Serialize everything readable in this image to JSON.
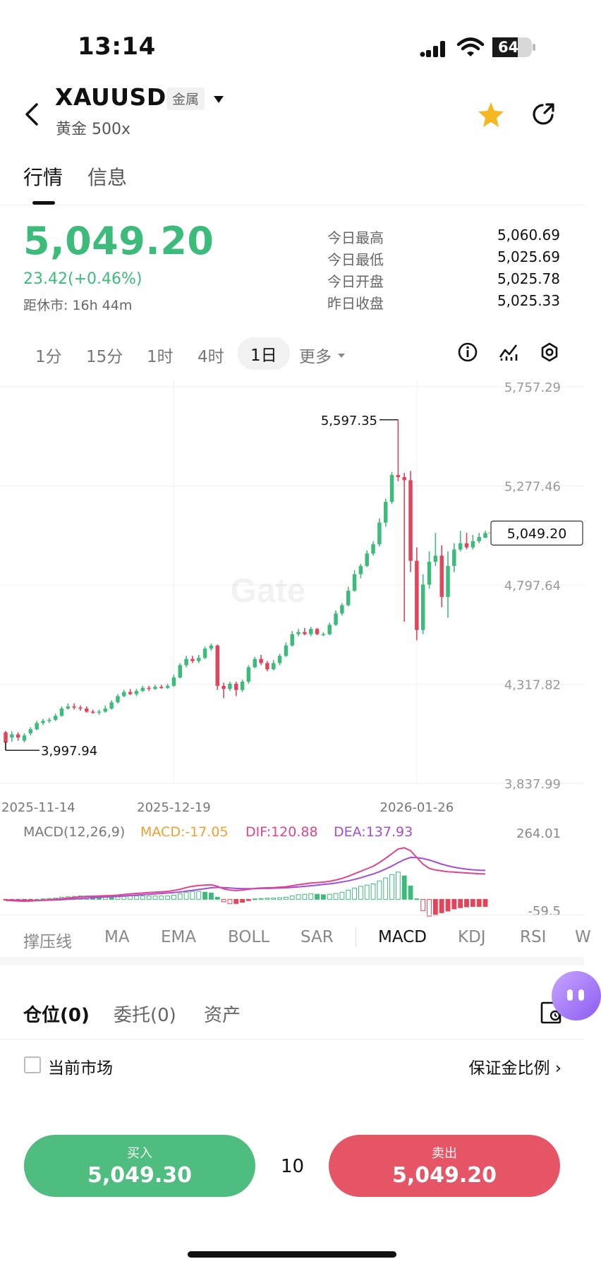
{
  "status_bar": {
    "time": "13:14",
    "battery": "64",
    "battery_level": 0.64
  },
  "header": {
    "symbol": "XAUUSD",
    "category": "金属",
    "subtitle": "黄金 500x"
  },
  "tabs": [
    {
      "label": "行情",
      "active": true
    },
    {
      "label": "信息",
      "active": false
    }
  ],
  "quote": {
    "price": "5,049.20",
    "change": "23.42(+0.46%)",
    "close_time": "距休市: 16h 44m",
    "stats": [
      {
        "label": "今日最高",
        "value": "5,060.69"
      },
      {
        "label": "今日最低",
        "value": "5,025.69"
      },
      {
        "label": "今日开盘",
        "value": "5,025.78"
      },
      {
        "label": "昨日收盘",
        "value": "5,025.33"
      }
    ]
  },
  "intervals": [
    "1分",
    "15分",
    "1时",
    "4时",
    "1日",
    "更多"
  ],
  "active_interval": "1日",
  "chart_data": {
    "type": "candlestick",
    "y_ticks": [
      "5,757.29",
      "5,277.46",
      "4,797.64",
      "4,317.82",
      "3,837.99"
    ],
    "ylim": [
      3837.99,
      5757.29
    ],
    "x_ticks": [
      "2025-11-14",
      "2025-12-19",
      "2026-01-26"
    ],
    "high_label": "5,597.35",
    "low_label": "3,997.94",
    "last_price_label": "5,049.20",
    "watermark": "Gate",
    "candles": [
      [
        4085,
        4035,
        4092,
        3997.94
      ],
      [
        4060,
        4075,
        4090,
        4040
      ],
      [
        4075,
        4060,
        4085,
        4045
      ],
      [
        4045,
        4070,
        4080,
        4035
      ],
      [
        4080,
        4100,
        4110,
        4070
      ],
      [
        4100,
        4130,
        4140,
        4095
      ],
      [
        4130,
        4140,
        4150,
        4120
      ],
      [
        4140,
        4145,
        4155,
        4130
      ],
      [
        4145,
        4165,
        4175,
        4140
      ],
      [
        4165,
        4200,
        4210,
        4160
      ],
      [
        4200,
        4210,
        4225,
        4195
      ],
      [
        4210,
        4205,
        4225,
        4195
      ],
      [
        4205,
        4200,
        4215,
        4190
      ],
      [
        4200,
        4185,
        4210,
        4180
      ],
      [
        4185,
        4180,
        4195,
        4175
      ],
      [
        4180,
        4185,
        4195,
        4170
      ],
      [
        4185,
        4200,
        4215,
        4180
      ],
      [
        4200,
        4230,
        4240,
        4195
      ],
      [
        4230,
        4260,
        4270,
        4225
      ],
      [
        4260,
        4280,
        4290,
        4255
      ],
      [
        4280,
        4270,
        4295,
        4265
      ],
      [
        4270,
        4285,
        4295,
        4260
      ],
      [
        4285,
        4300,
        4310,
        4280
      ],
      [
        4300,
        4295,
        4310,
        4285
      ],
      [
        4295,
        4305,
        4315,
        4290
      ],
      [
        4305,
        4300,
        4315,
        4295
      ],
      [
        4300,
        4310,
        4320,
        4295
      ],
      [
        4310,
        4350,
        4365,
        4305
      ],
      [
        4350,
        4410,
        4420,
        4345
      ],
      [
        4410,
        4440,
        4455,
        4400
      ],
      [
        4440,
        4430,
        4455,
        4420
      ],
      [
        4430,
        4445,
        4460,
        4420
      ],
      [
        4445,
        4490,
        4500,
        4440
      ],
      [
        4490,
        4505,
        4515,
        4480
      ],
      [
        4505,
        4310,
        4510,
        4290
      ],
      [
        4310,
        4295,
        4325,
        4250
      ],
      [
        4295,
        4320,
        4330,
        4285
      ],
      [
        4320,
        4290,
        4330,
        4260
      ],
      [
        4290,
        4330,
        4340,
        4280
      ],
      [
        4330,
        4400,
        4410,
        4320
      ],
      [
        4400,
        4440,
        4450,
        4395
      ],
      [
        4440,
        4420,
        4460,
        4410
      ],
      [
        4420,
        4390,
        4430,
        4380
      ],
      [
        4390,
        4420,
        4435,
        4385
      ],
      [
        4420,
        4455,
        4465,
        4410
      ],
      [
        4455,
        4505,
        4520,
        4450
      ],
      [
        4505,
        4560,
        4575,
        4500
      ],
      [
        4560,
        4570,
        4585,
        4550
      ],
      [
        4570,
        4560,
        4590,
        4555
      ],
      [
        4560,
        4585,
        4595,
        4550
      ],
      [
        4585,
        4560,
        4590,
        4555
      ],
      [
        4560,
        4560,
        4570,
        4550
      ],
      [
        4560,
        4605,
        4615,
        4555
      ],
      [
        4605,
        4660,
        4675,
        4600
      ],
      [
        4660,
        4700,
        4710,
        4650
      ],
      [
        4700,
        4770,
        4790,
        4695
      ],
      [
        4770,
        4850,
        4870,
        4765
      ],
      [
        4850,
        4890,
        4900,
        4830
      ],
      [
        4890,
        4950,
        4965,
        4885
      ],
      [
        4950,
        4995,
        5010,
        4940
      ],
      [
        4995,
        5100,
        5120,
        4985
      ],
      [
        5100,
        5200,
        5215,
        5080
      ],
      [
        5200,
        5330,
        5345,
        5190
      ],
      [
        5330,
        5320,
        5597.35,
        5300
      ],
      [
        5320,
        5305,
        5340,
        4620
      ],
      [
        5305,
        4915,
        5350,
        4860
      ],
      [
        4915,
        4580,
        4980,
        4530
      ],
      [
        4580,
        4800,
        4850,
        4560
      ],
      [
        4800,
        4910,
        4960,
        4780
      ],
      [
        4910,
        4940,
        5050,
        4890
      ],
      [
        4940,
        4740,
        4990,
        4690
      ],
      [
        4740,
        4890,
        4960,
        4640
      ],
      [
        4890,
        4970,
        5000,
        4860
      ],
      [
        4970,
        5000,
        5060,
        4960
      ],
      [
        5000,
        4980,
        5050,
        4970
      ],
      [
        4980,
        5010,
        5040,
        4970
      ],
      [
        5010,
        5030,
        5050,
        5000
      ],
      [
        5025.78,
        5049.2,
        5060.69,
        5025.69
      ]
    ],
    "macd": {
      "label": "MACD(12,26,9)",
      "macd_value": "MACD:-17.05",
      "dif_value": "DIF:120.88",
      "dea_value": "DEA:137.93",
      "y_top_label": "264.01",
      "y_bottom_label": "-59.5",
      "ylim": [
        -59.5,
        264.01
      ],
      "dif": [
        -5,
        -6,
        -8,
        -9,
        -8,
        -6,
        -4,
        -2,
        0,
        3,
        6,
        9,
        12,
        14,
        15,
        16,
        17,
        18,
        20,
        23,
        26,
        28,
        30,
        32,
        34,
        36,
        38,
        42,
        48,
        56,
        62,
        66,
        68,
        70,
        62,
        50,
        44,
        42,
        44,
        48,
        52,
        54,
        55,
        56,
        58,
        60,
        65,
        70,
        74,
        78,
        80,
        82,
        86,
        92,
        100,
        110,
        122,
        134,
        146,
        158,
        176,
        196,
        218,
        240,
        246,
        232,
        200,
        168,
        148,
        140,
        136,
        132,
        130,
        128,
        126,
        124,
        122,
        121
      ],
      "dea": [
        -3,
        -4,
        -5,
        -6,
        -6,
        -6,
        -5,
        -4,
        -3,
        -2,
        0,
        2,
        4,
        6,
        8,
        10,
        11,
        13,
        14,
        16,
        18,
        20,
        22,
        24,
        26,
        28,
        30,
        32,
        35,
        39,
        43,
        47,
        51,
        55,
        57,
        56,
        54,
        52,
        51,
        51,
        51,
        52,
        52,
        53,
        54,
        55,
        57,
        59,
        62,
        65,
        68,
        71,
        74,
        78,
        83,
        88,
        95,
        103,
        112,
        121,
        132,
        145,
        159,
        175,
        190,
        200,
        199,
        195,
        188,
        178,
        168,
        160,
        153,
        148,
        144,
        141,
        139,
        138
      ]
    }
  },
  "indicators": [
    "撑压线",
    "MA",
    "EMA",
    "BOLL",
    "SAR",
    "MACD",
    "KDJ",
    "RSI",
    "W"
  ],
  "active_indicator": "MACD",
  "positions": {
    "tabs": [
      "仓位(0)",
      "委托(0)",
      "资产"
    ],
    "checkbox_label": "当前市场",
    "margin_link": "保证金比例 ›"
  },
  "trade": {
    "buy_label": "买入",
    "buy_price": "5,049.30",
    "lots": "10",
    "sell_label": "卖出",
    "sell_price": "5,049.20"
  },
  "colors": {
    "up": "#3dbb7a",
    "down": "#e0455a",
    "dif": "#e0458c",
    "dea": "#a54dd4",
    "macd_text": "#f0a030"
  }
}
